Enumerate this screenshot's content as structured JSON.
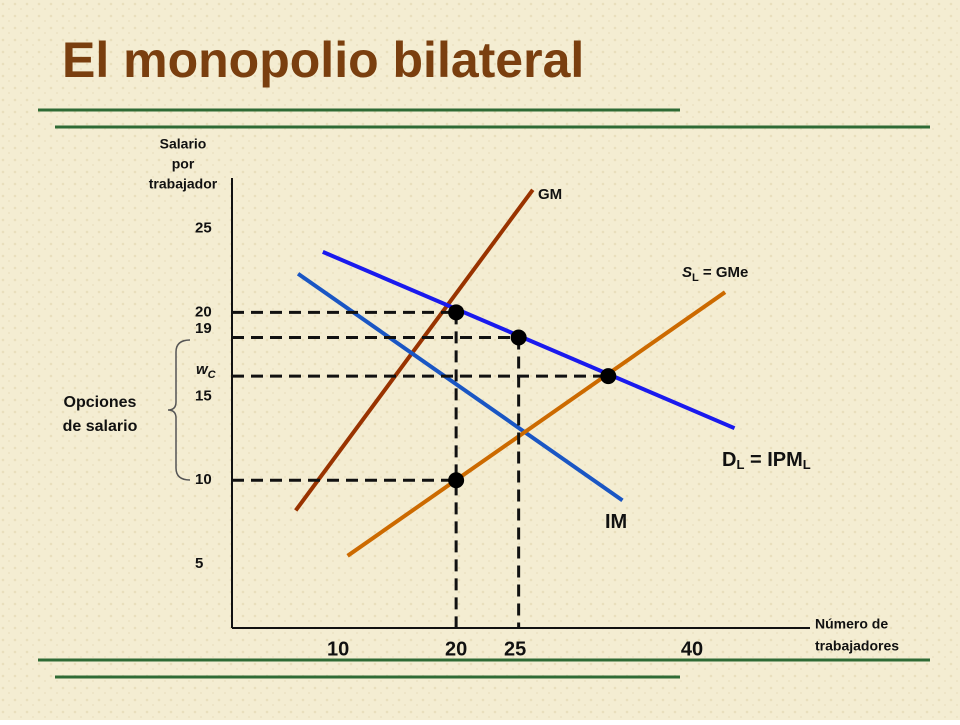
{
  "chart_data": {
    "type": "line",
    "title": "El monopolio bilateral",
    "y_axis_label": [
      "Salario",
      "por",
      "trabajador"
    ],
    "x_axis_label": [
      "Número de",
      "trabajadores"
    ],
    "annotation": [
      "Opciones",
      "de salario"
    ],
    "xlim": [
      1,
      50
    ],
    "ylim": [
      1.2,
      28
    ],
    "xticks": [
      10,
      20,
      25,
      40
    ],
    "yticks": [
      25,
      20,
      19,
      {
        "value": 16.2,
        "label": "w",
        "sub": "C"
      },
      15,
      10,
      5
    ],
    "series": [
      {
        "name_parts": [
          {
            "text": "GM"
          }
        ],
        "color": "#993300",
        "x": [
          6.4,
          26.5
        ],
        "values": [
          8.2,
          27.3
        ]
      },
      {
        "name_parts": [
          {
            "text": "IM"
          }
        ],
        "color": "#1a56c4",
        "x": [
          6.6,
          34.1
        ],
        "values": [
          22.3,
          8.8
        ]
      },
      {
        "name_parts": [
          {
            "text": "D",
            "sub": "L"
          },
          {
            "text": " = IPM",
            "sub": "L"
          }
        ],
        "color": "#1a1aee",
        "x": [
          8.7,
          43.6
        ],
        "values": [
          23.6,
          13.1
        ]
      },
      {
        "name_parts": [
          {
            "text": "S",
            "sub": "L",
            "italic": true
          },
          {
            "text": " =  GMe"
          }
        ],
        "color": "#cc6a00",
        "x": [
          10.8,
          42.8
        ],
        "values": [
          5.5,
          21.2
        ]
      }
    ],
    "points": {
      "x": [
        20,
        25.3,
        32.9,
        20
      ],
      "values": [
        20,
        18.5,
        16.2,
        10
      ]
    }
  }
}
